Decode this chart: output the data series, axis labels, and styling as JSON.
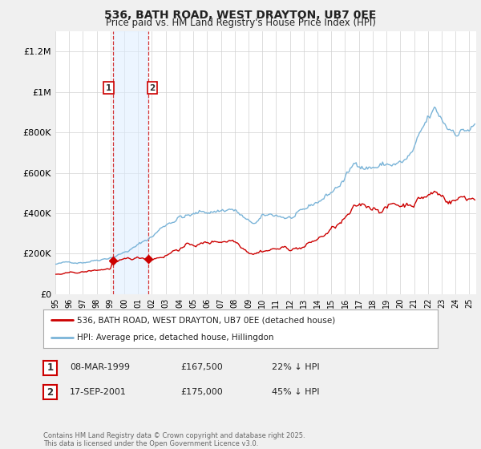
{
  "title": "536, BATH ROAD, WEST DRAYTON, UB7 0EE",
  "subtitle": "Price paid vs. HM Land Registry's House Price Index (HPI)",
  "ylim": [
    0,
    1300000
  ],
  "yticks": [
    0,
    200000,
    400000,
    600000,
    800000,
    1000000,
    1200000
  ],
  "ytick_labels": [
    "£0",
    "£200K",
    "£400K",
    "£600K",
    "£800K",
    "£1M",
    "£1.2M"
  ],
  "bg_color": "#f0f0f0",
  "plot_bg": "#ffffff",
  "grid_color": "#d0d0d0",
  "line_hpi_color": "#7ab4d8",
  "line_price_color": "#cc0000",
  "shade_color": "#ddeeff",
  "shade_alpha": 0.55,
  "vline_color": "#cc0000",
  "purchase1_x": 1999.19,
  "purchase1_y": 167500,
  "purchase2_x": 2001.71,
  "purchase2_y": 175000,
  "legend_price": "536, BATH ROAD, WEST DRAYTON, UB7 0EE (detached house)",
  "legend_hpi": "HPI: Average price, detached house, Hillingdon",
  "table": [
    {
      "n": "1",
      "date": "08-MAR-1999",
      "price": "£167,500",
      "pct": "22% ↓ HPI"
    },
    {
      "n": "2",
      "date": "17-SEP-2001",
      "price": "£175,000",
      "pct": "45% ↓ HPI"
    }
  ],
  "footer": "Contains HM Land Registry data © Crown copyright and database right 2025.\nThis data is licensed under the Open Government Licence v3.0.",
  "xmin": 1995.0,
  "xmax": 2025.5
}
